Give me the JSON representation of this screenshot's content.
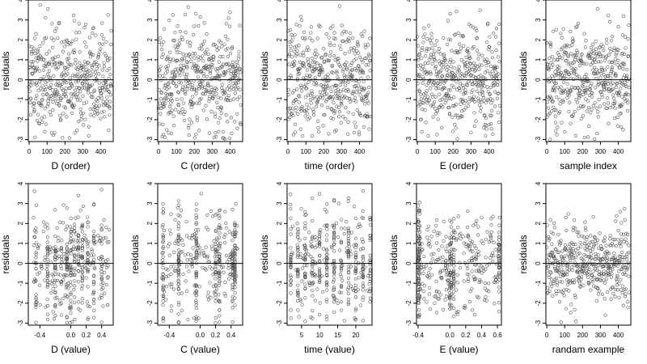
{
  "chart_data": [
    {
      "type": "scatter",
      "xlabel": "D (order)",
      "ylabel": "residuals",
      "xlim": [
        -5,
        470
      ],
      "ylim": [
        -3.1,
        4
      ],
      "xticks": [
        "0",
        "100",
        "200",
        "300",
        "400"
      ],
      "xtick_values": [
        0,
        100,
        200,
        300,
        400
      ],
      "yticks": [
        "-3",
        "-2",
        "-1",
        "0",
        "1",
        "2",
        "3",
        "4"
      ],
      "ytick_values": [
        -3,
        -2,
        -1,
        0,
        1,
        2,
        3,
        4
      ],
      "hline": 0,
      "seed": 11,
      "gen": "order",
      "n": 450,
      "xrange": [
        0,
        460
      ],
      "sd": 1.3
    },
    {
      "type": "scatter",
      "xlabel": "C (order)",
      "ylabel": "residuals",
      "xlim": [
        -5,
        470
      ],
      "ylim": [
        -3.1,
        4
      ],
      "xticks": [
        "0",
        "100",
        "200",
        "300",
        "400"
      ],
      "xtick_values": [
        0,
        100,
        200,
        300,
        400
      ],
      "yticks": [
        "-3",
        "-2",
        "-1",
        "0",
        "1",
        "2",
        "3",
        "4"
      ],
      "ytick_values": [
        -3,
        -2,
        -1,
        0,
        1,
        2,
        3,
        4
      ],
      "hline": 0,
      "seed": 23,
      "gen": "order",
      "n": 450,
      "xrange": [
        0,
        460
      ],
      "sd": 1.3
    },
    {
      "type": "scatter",
      "xlabel": "time (order)",
      "ylabel": "residuals",
      "xlim": [
        -5,
        470
      ],
      "ylim": [
        -3.1,
        4
      ],
      "xticks": [
        "0",
        "100",
        "200",
        "300",
        "400"
      ],
      "xtick_values": [
        0,
        100,
        200,
        300,
        400
      ],
      "yticks": [
        "-3",
        "-2",
        "-1",
        "0",
        "1",
        "2",
        "3",
        "4"
      ],
      "ytick_values": [
        -3,
        -2,
        -1,
        0,
        1,
        2,
        3,
        4
      ],
      "hline": 0,
      "seed": 37,
      "gen": "order",
      "n": 450,
      "xrange": [
        0,
        460
      ],
      "sd": 1.3
    },
    {
      "type": "scatter",
      "xlabel": "E (order)",
      "ylabel": "residuals",
      "xlim": [
        -5,
        470
      ],
      "ylim": [
        -3.1,
        4
      ],
      "xticks": [
        "0",
        "100",
        "200",
        "300",
        "400"
      ],
      "xtick_values": [
        0,
        100,
        200,
        300,
        400
      ],
      "yticks": [
        "-3",
        "-2",
        "-1",
        "0",
        "1",
        "2",
        "3",
        "4"
      ],
      "ytick_values": [
        -3,
        -2,
        -1,
        0,
        1,
        2,
        3,
        4
      ],
      "hline": 0,
      "seed": 41,
      "gen": "order",
      "n": 450,
      "xrange": [
        0,
        460
      ],
      "sd": 1.3
    },
    {
      "type": "scatter",
      "xlabel": "sample index",
      "ylabel": "residuals",
      "xlim": [
        -5,
        470
      ],
      "ylim": [
        -3.1,
        4
      ],
      "xticks": [
        "0",
        "100",
        "200",
        "300",
        "400"
      ],
      "xtick_values": [
        0,
        100,
        200,
        300,
        400
      ],
      "yticks": [
        "-3",
        "-2",
        "-1",
        "0",
        "1",
        "2",
        "3",
        "4"
      ],
      "ytick_values": [
        -3,
        -2,
        -1,
        0,
        1,
        2,
        3,
        4
      ],
      "hline": 0,
      "seed": 53,
      "gen": "order",
      "n": 450,
      "xrange": [
        0,
        460
      ],
      "sd": 1.3
    },
    {
      "type": "scatter",
      "xlabel": "D (value)",
      "ylabel": "residuals",
      "xlim": [
        -0.55,
        0.55
      ],
      "ylim": [
        -3.1,
        4
      ],
      "xticks": [
        "-0.4",
        "0.0",
        "0.2",
        "0.4"
      ],
      "xtick_values": [
        -0.4,
        0.0,
        0.2,
        0.4
      ],
      "yticks": [
        "-3",
        "-2",
        "-1",
        "0",
        "1",
        "2",
        "3",
        "4"
      ],
      "ytick_values": [
        -3,
        -2,
        -1,
        0,
        1,
        2,
        3,
        4
      ],
      "hline": 0,
      "seed": 61,
      "gen": "values",
      "n": 450,
      "xrange": [
        -0.5,
        0.5
      ],
      "sd": 1.3,
      "columns": [
        -0.45,
        -0.3,
        -0.2,
        -0.12,
        -0.05,
        0.0,
        0.05,
        0.1,
        0.15,
        0.22,
        0.3,
        0.4
      ],
      "colmix": 0.55
    },
    {
      "type": "scatter",
      "xlabel": "C (value)",
      "ylabel": "residuals",
      "xlim": [
        -0.55,
        0.55
      ],
      "ylim": [
        -3.1,
        4
      ],
      "xticks": [
        "-0.4",
        "0.0",
        "0.2",
        "0.4"
      ],
      "xtick_values": [
        -0.4,
        0.0,
        0.2,
        0.4
      ],
      "yticks": [
        "-3",
        "-2",
        "-1",
        "0",
        "1",
        "2",
        "3",
        "4"
      ],
      "ytick_values": [
        -3,
        -2,
        -1,
        0,
        1,
        2,
        3,
        4
      ],
      "hline": 0,
      "seed": 71,
      "gen": "values",
      "n": 450,
      "xrange": [
        -0.5,
        0.5
      ],
      "sd": 1.3,
      "columns": [
        -0.48,
        -0.28,
        -0.05,
        0.2,
        0.25,
        0.42,
        0.45
      ],
      "colmix": 0.6
    },
    {
      "type": "scatter",
      "xlabel": "time (value)",
      "ylabel": "residuals",
      "xlim": [
        1,
        24.5
      ],
      "ylim": [
        -3.1,
        4
      ],
      "xticks": [
        "5",
        "10",
        "15",
        "20"
      ],
      "xtick_values": [
        5,
        10,
        15,
        20
      ],
      "yticks": [
        "-3",
        "-2",
        "-1",
        "0",
        "1",
        "2",
        "3",
        "4"
      ],
      "ytick_values": [
        -3,
        -2,
        -1,
        0,
        1,
        2,
        3,
        4
      ],
      "hline": 0,
      "seed": 83,
      "gen": "values",
      "n": 450,
      "xrange": [
        2,
        24
      ],
      "sd": 1.3,
      "columns": [
        2,
        4,
        6,
        8,
        10,
        12,
        14,
        16,
        18,
        20,
        22,
        24
      ],
      "colmix": 0.7
    },
    {
      "type": "scatter",
      "xlabel": "E (value)",
      "ylabel": "residuals",
      "xlim": [
        -0.42,
        0.65
      ],
      "ylim": [
        -3.1,
        4
      ],
      "xticks": [
        "-0.4",
        "0.0",
        "0.2",
        "0.4",
        "0.6"
      ],
      "xtick_values": [
        -0.4,
        0.0,
        0.2,
        0.4,
        0.6
      ],
      "yticks": [
        "-3",
        "-2",
        "-1",
        "0",
        "1",
        "2",
        "3",
        "4"
      ],
      "ytick_values": [
        -3,
        -2,
        -1,
        0,
        1,
        2,
        3,
        4
      ],
      "hline": 0,
      "seed": 97,
      "gen": "values",
      "n": 450,
      "xrange": [
        -0.4,
        0.63
      ],
      "sd": 1.3,
      "columns": [
        -0.4,
        -0.39,
        -0.38,
        0.0,
        0.02,
        0.05,
        0.62
      ],
      "colmix": 0.45
    },
    {
      "type": "scatter",
      "xlabel": "randam example",
      "ylabel": "residuals",
      "xlim": [
        -5,
        470
      ],
      "ylim": [
        -3.1,
        4
      ],
      "xticks": [
        "0",
        "100",
        "200",
        "300",
        "400"
      ],
      "xtick_values": [
        0,
        100,
        200,
        300,
        400
      ],
      "yticks": [
        "-3",
        "-2",
        "-1",
        "0",
        "1",
        "2",
        "3",
        "4"
      ],
      "ytick_values": [
        -3,
        -2,
        -1,
        0,
        1,
        2,
        3,
        4
      ],
      "hline": 0,
      "seed": 109,
      "gen": "order",
      "n": 450,
      "xrange": [
        0,
        460
      ],
      "sd": 1.0
    }
  ],
  "colors": {
    "point": "#555555",
    "axis": "#000000",
    "background": "#ffffff"
  }
}
